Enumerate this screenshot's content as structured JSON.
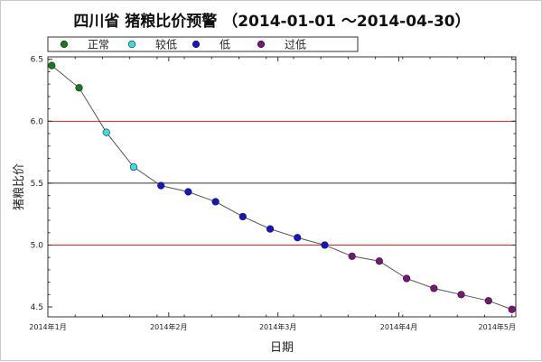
{
  "title": "四川省 猪粮比价预警 （2014-01-01 ～2014-04-30）",
  "legend": [
    {
      "label": "正常",
      "color": "#1a7a1a"
    },
    {
      "label": "较低",
      "color": "#33e0e6"
    },
    {
      "label": "低",
      "color": "#1414c8"
    },
    {
      "label": "过低",
      "color": "#7a147a"
    }
  ],
  "chart_data": {
    "type": "line",
    "title": "四川省 猪粮比价预警 （2014-01-01 ～2014-04-30）",
    "xlabel": "日期",
    "ylabel": "猪粮比价",
    "xlim": [
      "2014-01-01",
      "2014-05-01"
    ],
    "ylim": [
      4.42,
      6.52
    ],
    "x_ticks": [
      {
        "date": "2014-01-01",
        "label": "2014年1月"
      },
      {
        "date": "2014-02-01",
        "label": "2014年2月"
      },
      {
        "date": "2014-03-01",
        "label": "2014年3月"
      },
      {
        "date": "2014-04-01",
        "label": "2014年4月"
      },
      {
        "date": "2014-05-01",
        "label": "2014年5月"
      }
    ],
    "y_ticks": [
      "4.5",
      "5.0",
      "5.5",
      "6.0",
      "6.5"
    ],
    "reference_lines": [
      {
        "y": 6.0,
        "color": "#e02020"
      },
      {
        "y": 5.5,
        "color": "#333333"
      },
      {
        "y": 5.0,
        "color": "#e02020"
      }
    ],
    "points": [
      {
        "x": "2014-01-02",
        "y": 6.45,
        "level": "正常"
      },
      {
        "x": "2014-01-09",
        "y": 6.27,
        "level": "正常"
      },
      {
        "x": "2014-01-16",
        "y": 5.91,
        "level": "较低"
      },
      {
        "x": "2014-01-23",
        "y": 5.63,
        "level": "较低"
      },
      {
        "x": "2014-01-30",
        "y": 5.48,
        "level": "低"
      },
      {
        "x": "2014-02-06",
        "y": 5.43,
        "level": "低"
      },
      {
        "x": "2014-02-13",
        "y": 5.35,
        "level": "低"
      },
      {
        "x": "2014-02-20",
        "y": 5.23,
        "level": "低"
      },
      {
        "x": "2014-02-27",
        "y": 5.13,
        "level": "低"
      },
      {
        "x": "2014-03-06",
        "y": 5.06,
        "level": "低"
      },
      {
        "x": "2014-03-13",
        "y": 5.0,
        "level": "低"
      },
      {
        "x": "2014-03-20",
        "y": 4.91,
        "level": "过低"
      },
      {
        "x": "2014-03-27",
        "y": 4.87,
        "level": "过低"
      },
      {
        "x": "2014-04-03",
        "y": 4.73,
        "level": "过低"
      },
      {
        "x": "2014-04-10",
        "y": 4.65,
        "level": "过低"
      },
      {
        "x": "2014-04-17",
        "y": 4.6,
        "level": "过低"
      },
      {
        "x": "2014-04-24",
        "y": 4.55,
        "level": "过低"
      },
      {
        "x": "2014-04-30",
        "y": 4.48,
        "level": "过低"
      }
    ]
  }
}
